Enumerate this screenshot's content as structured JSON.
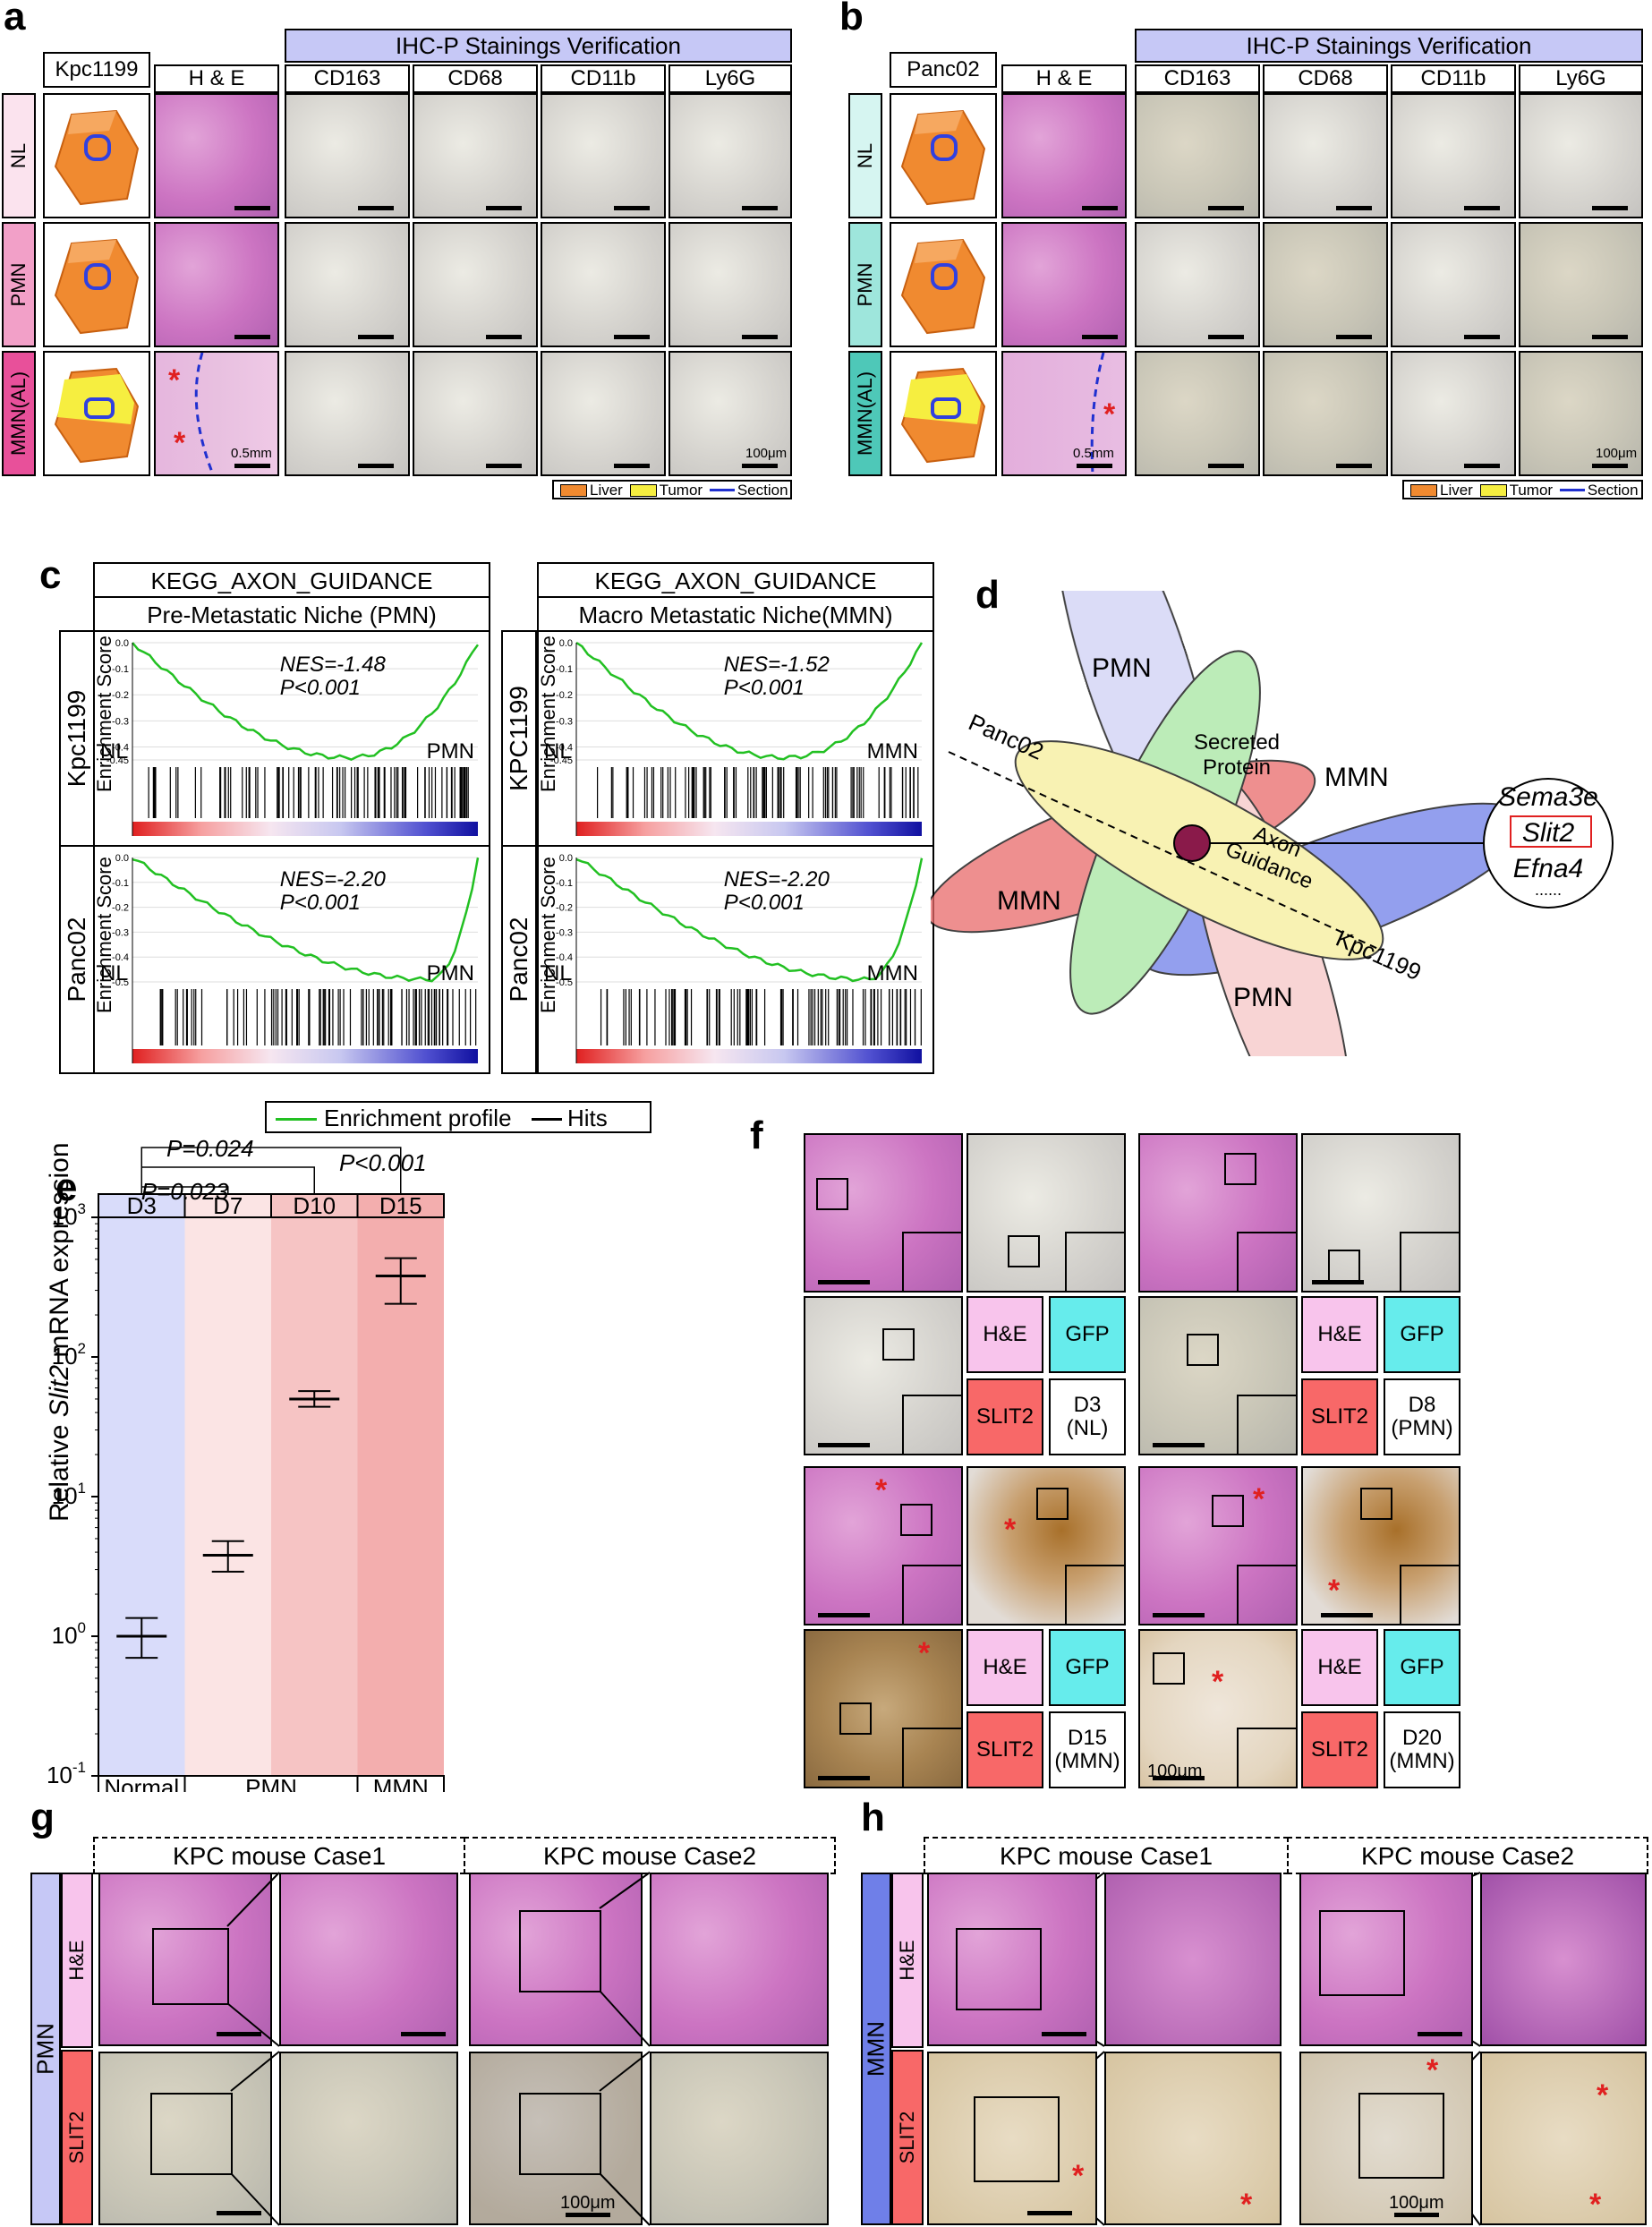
{
  "panel_labels": {
    "a": "a",
    "b": "b",
    "c": "c",
    "d": "d",
    "e": "e",
    "f": "f",
    "g": "g",
    "h": "h"
  },
  "panel_a": {
    "model": "Kpc1199",
    "header": "IHC-P Stainings Verification",
    "he_label": "H & E",
    "columns": [
      "CD163",
      "CD68",
      "CD11b",
      "Ly6G"
    ],
    "rows": [
      "NL",
      "PMN",
      "MMN(AL)"
    ],
    "scale_he": "0.5mm",
    "scale_ihc": "100μm",
    "legend": {
      "liver": "Liver",
      "tumor": "Tumor",
      "section": "Section"
    }
  },
  "panel_b": {
    "model": "Panc02",
    "header": "IHC-P Stainings Verification",
    "he_label": "H & E",
    "columns": [
      "CD163",
      "CD68",
      "CD11b",
      "Ly6G"
    ],
    "rows": [
      "NL",
      "PMN",
      "MMN(AL)"
    ],
    "scale_he": "0.5mm",
    "scale_ihc": "100μm",
    "legend": {
      "liver": "Liver",
      "tumor": "Tumor",
      "section": "Section"
    }
  },
  "panel_c": {
    "gene_set": "KEGG_AXON_GUIDANCE",
    "left_title": "Pre-Metastatic Niche (PMN)",
    "right_title": "Macro Metastatic Niche(MMN)",
    "ylabel": "Enrichment Score",
    "rows": [
      {
        "model_left": "Kpc1199",
        "model_right": "KPC1199",
        "left": {
          "nes": "NES=-1.48",
          "p": "P<0.001",
          "from": "NL",
          "to": "PMN",
          "ticks": [
            "0.0",
            "-0.1",
            "-0.2",
            "-0.3",
            "-0.4",
            "-0.45"
          ]
        },
        "right": {
          "nes": "NES=-1.52",
          "p": "P<0.001",
          "from": "NL",
          "to": "MMN",
          "ticks": [
            "0.0",
            "-0.1",
            "-0.2",
            "-0.3",
            "-0.4",
            "-0.45"
          ]
        }
      },
      {
        "model_left": "Panc02",
        "model_right": "Panc02",
        "left": {
          "nes": "NES=-2.20",
          "p": "P<0.001",
          "from": "NL",
          "to": "PMN",
          "ticks": [
            "0.0",
            "-0.1",
            "-0.2",
            "-0.3",
            "-0.4",
            "-0.5"
          ]
        },
        "right": {
          "nes": "NES=-2.20",
          "p": "P<0.001",
          "from": "NL",
          "to": "MMN",
          "ticks": [
            "0.0",
            "-0.1",
            "-0.2",
            "-0.3",
            "-0.4",
            "-0.5"
          ]
        }
      }
    ],
    "legend": {
      "profile": "Enrichment profile",
      "hits": "Hits"
    }
  },
  "panel_d": {
    "petals": [
      "PMN",
      "MMN",
      "MMN",
      "PMN",
      "Secreted Protein",
      "Axon Guidance"
    ],
    "axis_labels": [
      "Panc02",
      "Kpc1199"
    ],
    "genes": [
      "Sema3e",
      "Slit2",
      "Efna4"
    ],
    "ellipsis": "......",
    "colors": {
      "blue": "#6f7fe8",
      "red": "#e86a6a",
      "yellow": "#f6ee9a",
      "green": "#a6e6a0",
      "lavender": "#cfd0f4",
      "pink": "#f6c6c6",
      "core": "#8a1a4a"
    }
  },
  "chart_data": {
    "type": "scatter",
    "title": "",
    "ylabel": "Relative Slit2 mRNA expression",
    "yscale": "log",
    "ylim": [
      0.1,
      1000
    ],
    "yticks": [
      "10^-1",
      "10^0",
      "10^1",
      "10^2",
      "10^3"
    ],
    "categories": [
      "D3",
      "D7",
      "D10",
      "D15"
    ],
    "groups": [
      "Normal",
      "PMN",
      "MMN"
    ],
    "values": [
      1.0,
      3.8,
      50,
      380
    ],
    "error_low": [
      0.7,
      2.9,
      44,
      240
    ],
    "error_high": [
      1.35,
      4.8,
      57,
      510
    ],
    "significance": [
      {
        "pair": [
          "D3",
          "D7"
        ],
        "label": "P=0.023"
      },
      {
        "pair": [
          "D3",
          "D10"
        ],
        "label": "P=0.024"
      },
      {
        "pair": [
          "D3",
          "D15"
        ],
        "label": "P<0.001"
      }
    ],
    "band_colors": [
      "#d9dcfa",
      "#fbe4e4",
      "#f6c4c4",
      "#f3aeae"
    ]
  },
  "panel_f": {
    "labels": {
      "he": "H&E",
      "gfp": "GFP",
      "slit2": "SLIT2"
    },
    "timepoints": [
      "D3\n(NL)",
      "D8\n(PMN)",
      "D15\n(MMN)",
      "D20\n(MMN)"
    ],
    "scale": "100μm"
  },
  "panel_g": {
    "group": "PMN",
    "cases": [
      "KPC mouse Case1",
      "KPC mouse Case2"
    ],
    "rows": [
      "H&E",
      "SLIT2"
    ],
    "scale": "100μm"
  },
  "panel_h": {
    "group": "MMN",
    "cases": [
      "KPC mouse Case1",
      "KPC mouse Case2"
    ],
    "rows": [
      "H&E",
      "SLIT2"
    ],
    "scale": "100μm"
  }
}
